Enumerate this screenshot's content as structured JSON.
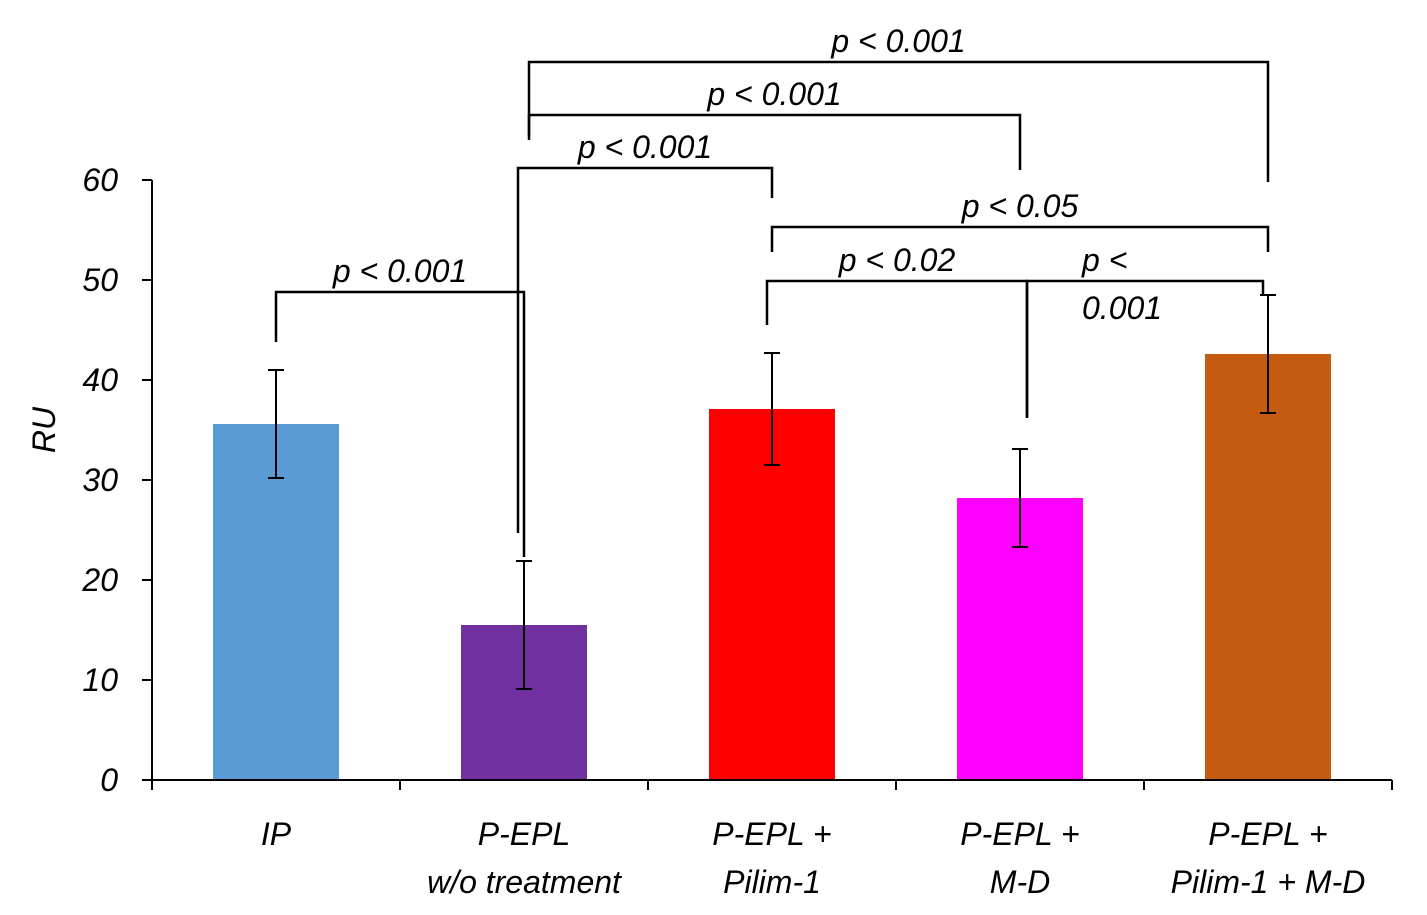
{
  "chart_data": {
    "type": "bar",
    "categories": [
      [
        "IP"
      ],
      [
        "P-EPL",
        "w/o treatment"
      ],
      [
        "P-EPL +",
        "Pilim-1"
      ],
      [
        "P-EPL +",
        "M-D"
      ],
      [
        "P-EPL +",
        "Pilim-1 + M-D"
      ]
    ],
    "values": [
      35.6,
      15.5,
      37.1,
      28.2,
      42.6
    ],
    "errors": [
      5.4,
      6.4,
      5.6,
      4.9,
      5.9
    ],
    "colors": [
      "#5b9bd5",
      "#7030a0",
      "#ff0000",
      "#ff00ff",
      "#c55a11"
    ],
    "ylabel": "RU",
    "xlabel": "",
    "title": "",
    "ylim": [
      0,
      60
    ],
    "yticks": [
      0,
      10,
      20,
      30,
      40,
      50,
      60
    ],
    "grid": false,
    "significance": [
      {
        "from": 0,
        "to": 1,
        "label": [
          "p < 0.001"
        ]
      },
      {
        "from": 1,
        "to": 2,
        "label": [
          "p < 0.001"
        ]
      },
      {
        "from": 1,
        "to": 3,
        "label": [
          "p < 0.001"
        ]
      },
      {
        "from": 1,
        "to": 4,
        "label": [
          "p < 0.001"
        ]
      },
      {
        "from": 2,
        "to": 3,
        "label": [
          "p < 0.02"
        ]
      },
      {
        "from": 2,
        "to": 4,
        "label": [
          "p < 0.05"
        ]
      },
      {
        "from": 3,
        "to": 4,
        "label": [
          "p <",
          "0.001"
        ]
      }
    ]
  }
}
